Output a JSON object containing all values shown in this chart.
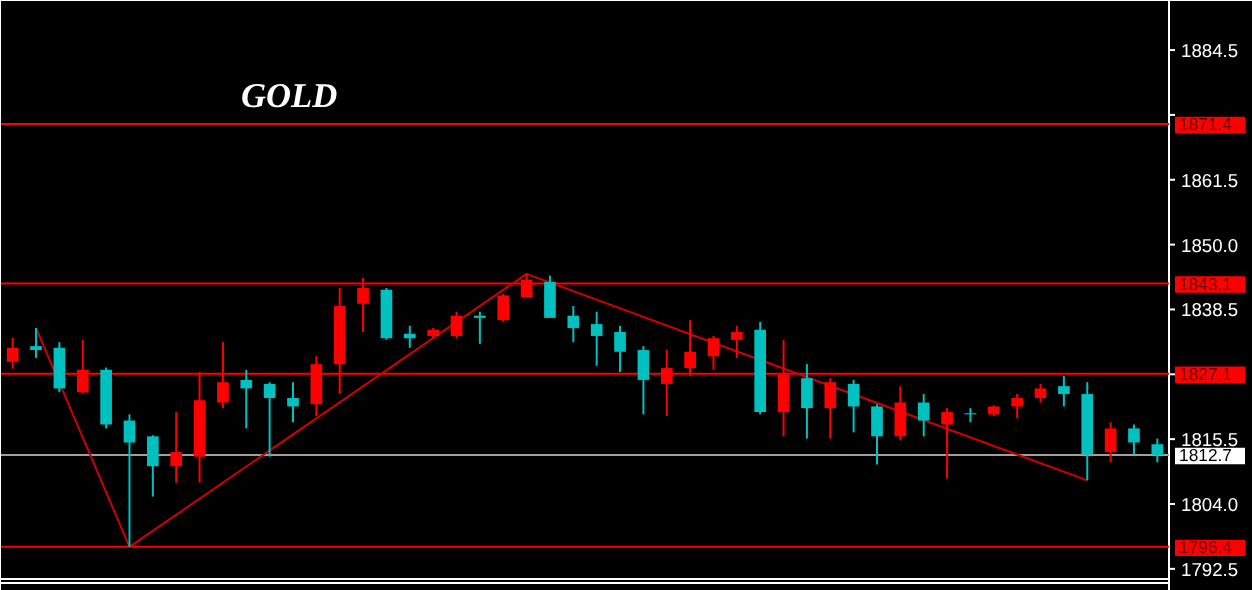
{
  "chart_data": {
    "type": "candlestick",
    "title": "GOLD",
    "categories": [
      null,
      null,
      null,
      null,
      null,
      null,
      null,
      null,
      null,
      null,
      null,
      null,
      null,
      null,
      null,
      null,
      null,
      null,
      null,
      null,
      null,
      null,
      null,
      null,
      null,
      null,
      null,
      null,
      null,
      null,
      null,
      null,
      null,
      null,
      null,
      null,
      null,
      null,
      null,
      null,
      null,
      null,
      null,
      null,
      null,
      null,
      null,
      null,
      null,
      null
    ],
    "ohlc": [
      [
        1829.2,
        1833.5,
        1828.0,
        1831.7
      ],
      [
        1832.0,
        1835.2,
        1829.9,
        1831.3
      ],
      [
        1831.7,
        1832.7,
        1823.8,
        1824.5
      ],
      [
        1823.8,
        1833.1,
        1823.6,
        1827.8
      ],
      [
        1827.8,
        1828.2,
        1817.4,
        1818.1
      ],
      [
        1818.8,
        1819.9,
        1796.4,
        1814.9
      ],
      [
        1816.0,
        1816.2,
        1805.3,
        1810.7
      ],
      [
        1810.7,
        1820.3,
        1807.8,
        1813.2
      ],
      [
        1812.4,
        1827.4,
        1807.8,
        1822.4
      ],
      [
        1822.0,
        1832.7,
        1821.0,
        1825.6
      ],
      [
        1826.0,
        1827.8,
        1817.4,
        1824.5
      ],
      [
        1825.3,
        1825.6,
        1812.4,
        1822.8
      ],
      [
        1822.8,
        1825.6,
        1818.5,
        1821.3
      ],
      [
        1821.7,
        1830.2,
        1819.6,
        1828.8
      ],
      [
        1828.8,
        1842.3,
        1823.5,
        1839.1
      ],
      [
        1839.5,
        1844.1,
        1834.5,
        1842.3
      ],
      [
        1842.0,
        1842.3,
        1833.1,
        1833.4
      ],
      [
        1834.2,
        1835.6,
        1831.7,
        1833.4
      ],
      [
        1833.8,
        1835.2,
        1833.4,
        1834.9
      ],
      [
        1833.8,
        1838.1,
        1833.4,
        1837.4
      ],
      [
        1837.4,
        1838.1,
        1832.4,
        1837.0
      ],
      [
        1836.6,
        1841.3,
        1836.3,
        1841.0
      ],
      [
        1840.6,
        1844.8,
        1840.6,
        1843.8
      ],
      [
        1843.4,
        1844.5,
        1837.0,
        1837.0
      ],
      [
        1837.4,
        1839.1,
        1832.7,
        1835.2
      ],
      [
        1835.9,
        1838.1,
        1828.5,
        1833.8
      ],
      [
        1834.5,
        1835.6,
        1827.4,
        1831.0
      ],
      [
        1831.3,
        1832.0,
        1819.9,
        1826.0
      ],
      [
        1825.3,
        1831.3,
        1819.6,
        1828.1
      ],
      [
        1828.1,
        1836.6,
        1826.7,
        1831.0
      ],
      [
        1830.2,
        1833.8,
        1827.8,
        1833.4
      ],
      [
        1833.1,
        1835.6,
        1829.9,
        1834.5
      ],
      [
        1834.9,
        1836.3,
        1819.9,
        1820.3
      ],
      [
        1820.3,
        1833.1,
        1816.0,
        1827.0
      ],
      [
        1826.3,
        1828.8,
        1815.6,
        1821.0
      ],
      [
        1821.0,
        1826.3,
        1815.6,
        1825.6
      ],
      [
        1825.3,
        1826.0,
        1816.7,
        1821.3
      ],
      [
        1821.3,
        1821.7,
        1811.0,
        1816.0
      ],
      [
        1816.0,
        1824.9,
        1815.3,
        1822.0
      ],
      [
        1822.0,
        1823.5,
        1816.0,
        1818.8
      ],
      [
        1818.1,
        1821.0,
        1808.5,
        1820.3
      ],
      [
        1820.1,
        1821.0,
        1818.5,
        1819.9
      ],
      [
        1819.9,
        1821.5,
        1819.6,
        1821.3
      ],
      [
        1821.3,
        1823.5,
        1819.2,
        1822.8
      ],
      [
        1822.8,
        1825.3,
        1822.0,
        1824.5
      ],
      [
        1824.9,
        1826.7,
        1821.3,
        1823.5
      ],
      [
        1823.5,
        1825.6,
        1808.2,
        1812.8
      ],
      [
        1813.2,
        1818.5,
        1811.4,
        1817.4
      ],
      [
        1817.4,
        1818.1,
        1812.8,
        1814.9
      ],
      [
        1814.6,
        1815.6,
        1811.4,
        1812.7
      ]
    ],
    "colors": [
      "#ff0000",
      "#00c0c0",
      "#00c0c0",
      "#ff0000",
      "#00c0c0",
      "#00c0c0",
      "#00c0c0",
      "#ff0000",
      "#ff0000",
      "#ff0000",
      "#00c0c0",
      "#00c0c0",
      "#00c0c0",
      "#ff0000",
      "#ff0000",
      "#ff0000",
      "#00c0c0",
      "#00c0c0",
      "#ff0000",
      "#ff0000",
      "#00c0c0",
      "#ff0000",
      "#ff0000",
      "#00c0c0",
      "#00c0c0",
      "#00c0c0",
      "#00c0c0",
      "#00c0c0",
      "#ff0000",
      "#ff0000",
      "#ff0000",
      "#ff0000",
      "#00c0c0",
      "#ff0000",
      "#00c0c0",
      "#ff0000",
      "#00c0c0",
      "#00c0c0",
      "#ff0000",
      "#00c0c0",
      "#ff0000",
      "#00c0c0",
      "#ff0000",
      "#ff0000",
      "#ff0000",
      "#00c0c0",
      "#00c0c0",
      "#ff0000",
      "#00c0c0",
      "#00c0c0"
    ],
    "series": [
      {
        "type": "line",
        "values": [
          null,
          1835.2,
          null,
          null,
          null,
          1796.4,
          null,
          null,
          null,
          null,
          null,
          null,
          null,
          null,
          null,
          null,
          null,
          null,
          null,
          null,
          null,
          null,
          1844.8,
          null,
          null,
          null,
          null,
          null,
          null,
          null,
          null,
          null,
          null,
          null,
          null,
          null,
          null,
          null,
          null,
          null,
          null,
          null,
          null,
          null,
          null,
          null,
          1808.2,
          null,
          null,
          null
        ],
        "color": "#d00000"
      }
    ],
    "ylim": [
      1790.7,
      1893.2
    ],
    "yticks": [
      1792.5,
      {
        "value": 1804.0,
        "label": "1804.0"
      },
      1815.5,
      {
        "value": 1827.0,
        "label": null
      },
      1838.5,
      {
        "value": 1850.0,
        "label": "1850.0"
      },
      1861.5,
      {
        "value": 1873.0,
        "label": null
      },
      1884.5
    ],
    "tick_labels": "y",
    "grid": false,
    "ref_lines": [
      {
        "axis": "y",
        "value": 1871.4,
        "label": "1871.4",
        "color": "#ff0000"
      },
      {
        "axis": "y",
        "value": 1843.1,
        "label": "1843.1",
        "color": "#ff0000"
      },
      {
        "axis": "y",
        "value": 1827.1,
        "label": "1827.1",
        "color": "#ff0000"
      },
      {
        "axis": "y",
        "value": 1796.4,
        "label": "1796.4",
        "color": "#ff0000"
      },
      {
        "axis": "y",
        "value": 1812.7,
        "label": "1812.7",
        "color": "#a0a0a0"
      }
    ]
  }
}
